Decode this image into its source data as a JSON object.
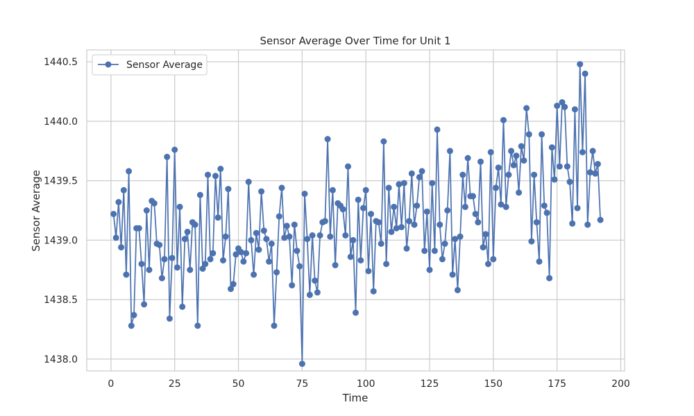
{
  "chart_data": {
    "type": "line",
    "title": "Sensor Average Over Time for Unit 1",
    "xlabel": "Time",
    "ylabel": "Sensor Average",
    "xlim": [
      -9.5,
      201.5
    ],
    "ylim": [
      1437.9,
      1440.6
    ],
    "xticks": [
      0,
      25,
      50,
      75,
      100,
      125,
      150,
      175,
      200
    ],
    "yticks": [
      1438.0,
      1438.5,
      1439.0,
      1439.5,
      1440.0,
      1440.5
    ],
    "xtick_labels": [
      "0",
      "25",
      "50",
      "75",
      "100",
      "125",
      "150",
      "175",
      "200"
    ],
    "ytick_labels": [
      "1438.0",
      "1438.5",
      "1439.0",
      "1439.5",
      "1440.0",
      "1440.5"
    ],
    "grid": true,
    "legend": {
      "placement": "top-left",
      "entries": [
        "Sensor Average"
      ]
    },
    "colors": {
      "line": "#4c72b0",
      "grid": "#cccccc",
      "frame": "#cccccc"
    },
    "series": [
      {
        "name": "Sensor Average",
        "marker": "circle",
        "x": [
          1,
          2,
          3,
          4,
          5,
          6,
          7,
          8,
          9,
          10,
          11,
          12,
          13,
          14,
          15,
          16,
          17,
          18,
          19,
          20,
          21,
          22,
          23,
          24,
          25,
          26,
          27,
          28,
          29,
          30,
          31,
          32,
          33,
          34,
          35,
          36,
          37,
          38,
          39,
          40,
          41,
          42,
          43,
          44,
          45,
          46,
          47,
          48,
          49,
          50,
          51,
          52,
          53,
          54,
          55,
          56,
          57,
          58,
          59,
          60,
          61,
          62,
          63,
          64,
          65,
          66,
          67,
          68,
          69,
          70,
          71,
          72,
          73,
          74,
          75,
          76,
          77,
          78,
          79,
          80,
          81,
          82,
          83,
          84,
          85,
          86,
          87,
          88,
          89,
          90,
          91,
          92,
          93,
          94,
          95,
          96,
          97,
          98,
          99,
          100,
          101,
          102,
          103,
          104,
          105,
          106,
          107,
          108,
          109,
          110,
          111,
          112,
          113,
          114,
          115,
          116,
          117,
          118,
          119,
          120,
          121,
          122,
          123,
          124,
          125,
          126,
          127,
          128,
          129,
          130,
          131,
          132,
          133,
          134,
          135,
          136,
          137,
          138,
          139,
          140,
          141,
          142,
          143,
          144,
          145,
          146,
          147,
          148,
          149,
          150,
          151,
          152,
          153,
          154,
          155,
          156,
          157,
          158,
          159,
          160,
          161,
          162,
          163,
          164,
          165,
          166,
          167,
          168,
          169,
          170,
          171,
          172,
          173,
          174,
          175,
          176,
          177,
          178,
          179,
          180,
          181,
          182,
          183,
          184,
          185,
          186,
          187,
          188,
          189,
          190,
          191,
          192
        ],
        "values": [
          1439.22,
          1439.02,
          1439.32,
          1438.94,
          1439.42,
          1438.71,
          1439.58,
          1438.28,
          1438.37,
          1439.1,
          1439.1,
          1438.8,
          1438.46,
          1439.25,
          1438.75,
          1439.33,
          1439.31,
          1438.97,
          1438.96,
          1438.68,
          1438.84,
          1439.7,
          1438.34,
          1438.85,
          1439.76,
          1438.77,
          1439.28,
          1438.44,
          1439.01,
          1439.07,
          1438.75,
          1439.15,
          1439.13,
          1438.28,
          1439.38,
          1438.76,
          1438.8,
          1439.55,
          1438.84,
          1438.89,
          1439.54,
          1439.19,
          1439.6,
          1438.83,
          1439.03,
          1439.43,
          1438.59,
          1438.63,
          1438.88,
          1438.93,
          1438.9,
          1438.82,
          1438.89,
          1439.49,
          1439.0,
          1438.71,
          1439.06,
          1438.92,
          1439.41,
          1439.08,
          1439.01,
          1438.82,
          1438.97,
          1438.28,
          1438.73,
          1439.2,
          1439.44,
          1439.02,
          1439.12,
          1439.03,
          1438.62,
          1439.13,
          1438.91,
          1438.78,
          1437.96,
          1439.39,
          1439.01,
          1438.54,
          1439.04,
          1438.66,
          1438.56,
          1439.04,
          1439.15,
          1439.16,
          1439.85,
          1439.03,
          1439.42,
          1438.79,
          1439.31,
          1439.29,
          1439.26,
          1439.04,
          1439.62,
          1438.86,
          1439.0,
          1438.39,
          1439.34,
          1438.83,
          1439.27,
          1439.42,
          1438.74,
          1439.22,
          1438.57,
          1439.16,
          1439.15,
          1438.97,
          1439.83,
          1438.8,
          1439.44,
          1439.07,
          1439.28,
          1439.1,
          1439.47,
          1439.11,
          1439.48,
          1438.93,
          1439.16,
          1439.56,
          1439.13,
          1439.29,
          1439.53,
          1439.58,
          1438.91,
          1439.24,
          1438.75,
          1439.48,
          1438.91,
          1439.93,
          1439.13,
          1438.84,
          1438.97,
          1439.25,
          1439.75,
          1438.71,
          1439.01,
          1438.58,
          1439.03,
          1439.55,
          1439.28,
          1439.69,
          1439.37,
          1439.37,
          1439.22,
          1439.15,
          1439.66,
          1438.94,
          1439.05,
          1438.8,
          1439.74,
          1438.84,
          1439.44,
          1439.61,
          1439.3,
          1440.01,
          1439.28,
          1439.55,
          1439.75,
          1439.63,
          1439.71,
          1439.4,
          1439.79,
          1439.67,
          1440.11,
          1439.89,
          1438.99,
          1439.55,
          1439.15,
          1438.82,
          1439.89,
          1439.29,
          1439.23,
          1438.68,
          1439.78,
          1439.51,
          1440.13,
          1439.62,
          1440.16,
          1440.12,
          1439.62,
          1439.49,
          1439.14,
          1440.1,
          1439.27,
          1440.48,
          1439.74,
          1440.4,
          1439.13,
          1439.57,
          1439.75,
          1439.56,
          1439.64,
          1439.17
        ]
      }
    ]
  }
}
